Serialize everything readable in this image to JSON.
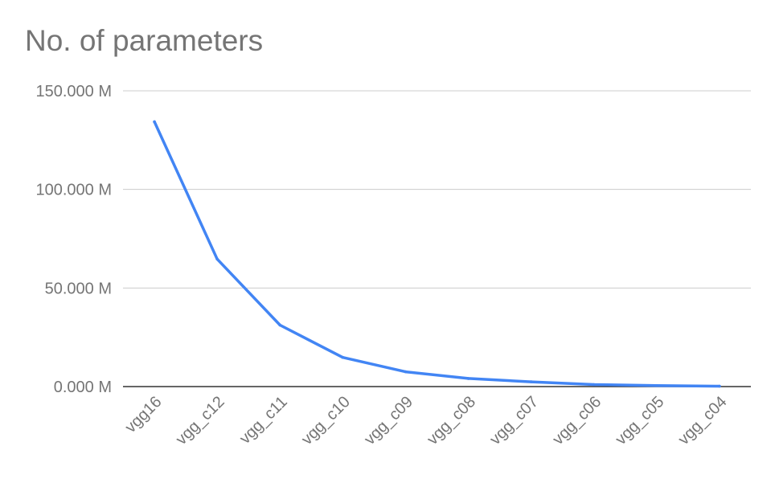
{
  "chart_data": {
    "type": "line",
    "title": "No. of parameters",
    "xlabel": "",
    "ylabel": "",
    "categories": [
      "vgg16",
      "vgg_c12",
      "vgg_c11",
      "vgg_c10",
      "vgg_c09",
      "vgg_c08",
      "vgg_c07",
      "vgg_c06",
      "vgg_c05",
      "vgg_c04"
    ],
    "series": [
      {
        "values": [
          134.3,
          64.7,
          31.2,
          14.8,
          7.5,
          4.1,
          2.4,
          1.0,
          0.5,
          0.2
        ],
        "color": "#4285f4"
      }
    ],
    "ylim": [
      0,
      150
    ],
    "yticks": [
      0,
      50,
      100,
      150
    ],
    "ytick_labels": [
      "0.000 M",
      "50.000 M",
      "100.000 M",
      "150.000 M"
    ],
    "grid": true,
    "legend": "none",
    "colors": {
      "gridline": "#cccccc",
      "baseline": "#333333",
      "text": "#757575"
    }
  }
}
